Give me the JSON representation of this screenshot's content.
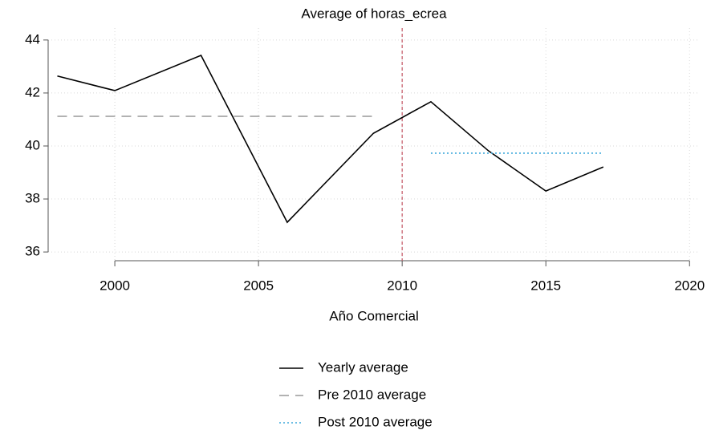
{
  "chart_data": {
    "type": "line",
    "title": "Average of horas_ecrea",
    "x_label": "Año Comercial",
    "series": [
      {
        "name": "Yearly average",
        "color": "#000000",
        "dash": "solid",
        "x": [
          1998,
          2000,
          2003,
          2006,
          2009,
          2011,
          2013,
          2015,
          2017
        ],
        "values": [
          42.64,
          42.09,
          43.42,
          37.12,
          40.48,
          41.67,
          39.82,
          38.3,
          39.21
        ]
      },
      {
        "name": "Pre 2010 average",
        "color": "#999999",
        "dash": "dashed",
        "x": [
          1998,
          2009
        ],
        "values": [
          41.12,
          41.12
        ]
      },
      {
        "name": "Post 2010 average",
        "color": "#3fa9dc",
        "dash": "dotted",
        "x": [
          2011,
          2017
        ],
        "values": [
          39.73,
          39.73
        ]
      }
    ],
    "xline": 2010,
    "xline_color": "#c9606e",
    "xlim": [
      1997.68,
      2020.3
    ],
    "xticks": [
      2000,
      2005,
      2010,
      2015,
      2020
    ],
    "ylim": [
      35.67,
      44.45
    ],
    "yticks": [
      36,
      38,
      40,
      42,
      44
    ],
    "grid": true,
    "legend": "bottom"
  }
}
